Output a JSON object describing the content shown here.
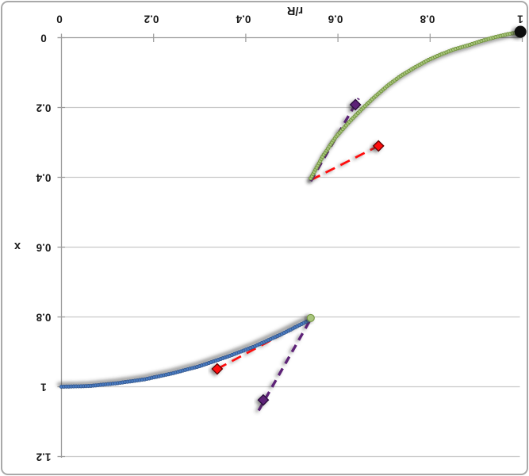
{
  "chart_data": {
    "type": "scatter",
    "title": "",
    "xlabel": "r/R",
    "ylabel": "x",
    "xlim": [
      0,
      1
    ],
    "ylim": [
      0,
      1.2
    ],
    "grid": true,
    "rotated_180": true,
    "legend": "none",
    "x_tick_labels": [
      "0",
      "0.2",
      "0.4",
      "0.6",
      "0.8",
      "1"
    ],
    "x_tick_values": [
      0,
      0.2,
      0.4,
      0.6,
      0.8,
      1
    ],
    "y_tick_labels": [
      "0",
      "0.2",
      "0.4",
      "0.6",
      "0.8",
      "1",
      "1.2"
    ],
    "y_tick_values": [
      0,
      0.2,
      0.4,
      0.6,
      0.8,
      1,
      1.2
    ],
    "colors": {
      "grid": "#C9C9C9",
      "axis": "#9B9B9B",
      "text": "#1A1A1A",
      "frame": "#A9A9A9",
      "background": "#FFFFFF",
      "green_fill": "#A8C57D",
      "green_stroke": "#6F913A",
      "blue_fill": "#4A7CC4",
      "blue_stroke": "#35588C",
      "red": "#FE0D0D",
      "red_edge": "#600000",
      "purple": "#5D2277",
      "purple_edge": "#2A0E3C",
      "black": "#0D0D0D"
    },
    "series": [
      {
        "name": "upper-profile-curve",
        "kind": "marker_chain",
        "fill": "#A8C57D",
        "stroke": "#6F913A",
        "shadow": [
          -2,
          3
        ],
        "points": [
          [
            0.541,
            0.403
          ],
          [
            0.567,
            0.34
          ],
          [
            0.595,
            0.285
          ],
          [
            0.624,
            0.242
          ],
          [
            0.653,
            0.203
          ],
          [
            0.681,
            0.168
          ],
          [
            0.71,
            0.135
          ],
          [
            0.738,
            0.108
          ],
          [
            0.767,
            0.085
          ],
          [
            0.796,
            0.064
          ],
          [
            0.825,
            0.047
          ],
          [
            0.853,
            0.033
          ],
          [
            0.882,
            0.022
          ],
          [
            0.91,
            0.01
          ],
          [
            0.939,
            -0.001
          ],
          [
            0.968,
            -0.01
          ],
          [
            0.996,
            -0.017
          ]
        ]
      },
      {
        "name": "core-profile-curve",
        "kind": "marker_chain",
        "fill": "#4A7CC4",
        "stroke": "#35588C",
        "shadow": [
          -3,
          -3
        ],
        "points": [
          [
            0.0,
            1.0
          ],
          [
            0.06,
            0.998
          ],
          [
            0.12,
            0.99
          ],
          [
            0.18,
            0.979
          ],
          [
            0.24,
            0.962
          ],
          [
            0.3,
            0.941
          ],
          [
            0.36,
            0.914
          ],
          [
            0.42,
            0.884
          ],
          [
            0.48,
            0.848
          ],
          [
            0.541,
            0.807
          ]
        ]
      },
      {
        "name": "upper-red-dashed-line",
        "kind": "dashed_line",
        "color": "#FE0D0D",
        "width": 2.8,
        "dash": "13 8",
        "shadow": [
          -3,
          2
        ],
        "from": [
          0.541,
          0.408
        ],
        "to": [
          0.688,
          0.31
        ]
      },
      {
        "name": "upper-purple-dashed-line",
        "kind": "dashed_line",
        "color": "#5D2277",
        "width": 3.4,
        "dash": "10 7",
        "shadow": [
          -3,
          2
        ],
        "from": [
          0.541,
          0.411
        ],
        "to": [
          0.645,
          0.174
        ]
      },
      {
        "name": "lower-red-dashed-line",
        "kind": "dashed_line",
        "color": "#FE0D0D",
        "width": 2.8,
        "dash": "13 8",
        "shadow": [
          -3,
          2
        ],
        "from": [
          0.338,
          0.949
        ],
        "to": [
          0.541,
          0.806
        ]
      },
      {
        "name": "lower-purple-dashed-line",
        "kind": "dashed_line",
        "color": "#5D2277",
        "width": 3.4,
        "dash": "10 7",
        "shadow": [
          -3,
          2
        ],
        "from": [
          0.428,
          1.068
        ],
        "to": [
          0.541,
          0.806
        ]
      },
      {
        "name": "upper-red-diamond",
        "kind": "diamond",
        "fill": "#FE0D0D",
        "stroke": "#600000",
        "size": 6.5,
        "shadow": [
          -3,
          2
        ],
        "point": [
          0.688,
          0.31
        ]
      },
      {
        "name": "upper-purple-diamond",
        "kind": "diamond",
        "fill": "#5D2277",
        "stroke": "#2A0E3C",
        "size": 6.5,
        "shadow": [
          -3,
          2
        ],
        "point": [
          0.638,
          0.192
        ]
      },
      {
        "name": "lower-red-diamond",
        "kind": "diamond",
        "fill": "#FE0D0D",
        "stroke": "#600000",
        "size": 6.5,
        "shadow": [
          -3,
          2
        ],
        "point": [
          0.338,
          0.949
        ]
      },
      {
        "name": "lower-purple-diamond",
        "kind": "diamond",
        "fill": "#5D2277",
        "stroke": "#2A0E3C",
        "size": 6.5,
        "shadow": [
          -3,
          2
        ],
        "point": [
          0.438,
          1.038
        ]
      },
      {
        "name": "junction-green-dot",
        "kind": "dot",
        "fill": "#A8C57D",
        "stroke": "#6F913A",
        "r": 4.5,
        "shadow": [
          -3,
          2
        ],
        "point": [
          0.541,
          0.803
        ]
      },
      {
        "name": "wall-black-dot",
        "kind": "dot",
        "fill": "#0D0D0D",
        "stroke": "#0D0D0D",
        "r": 7,
        "shadow": [
          -4,
          2
        ],
        "point": [
          0.996,
          -0.017
        ]
      }
    ]
  }
}
